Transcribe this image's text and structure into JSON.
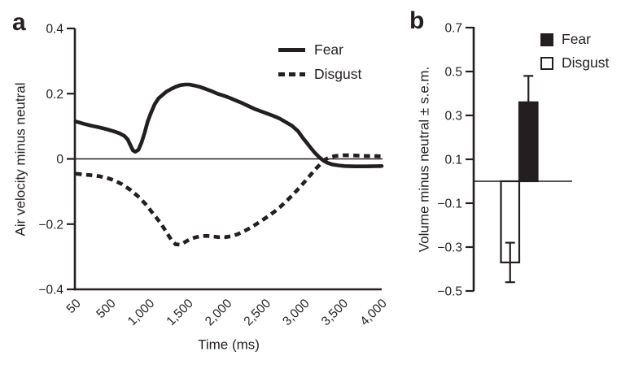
{
  "colors": {
    "ink": "#231f20",
    "background": "#ffffff"
  },
  "panel_a": {
    "letter": "a",
    "ylabel": "Air velocity minus neutral",
    "xlabel": "Time (ms)",
    "legend": [
      {
        "label": "Fear",
        "swatch": "solid-line"
      },
      {
        "label": "Disgust",
        "swatch": "dashed-line"
      }
    ]
  },
  "panel_b": {
    "letter": "b",
    "ylabel": "Volume minus neutral ± s.e.m.",
    "legend": [
      {
        "label": "Fear",
        "swatch": "filled-square"
      },
      {
        "label": "Disgust",
        "swatch": "outline-square"
      }
    ]
  },
  "chart_data": [
    {
      "panel": "a",
      "type": "line",
      "title": "",
      "xlabel": "Time (ms)",
      "ylabel": "Air velocity minus neutral",
      "xlim": [
        50,
        4000
      ],
      "ylim": [
        -0.4,
        0.4
      ],
      "xtick_values": [
        50,
        500,
        1000,
        1500,
        2000,
        2500,
        3000,
        3500,
        4000
      ],
      "xtick_labels": [
        "50",
        "500",
        "1,000",
        "1,500",
        "2,000",
        "2,500",
        "3,000",
        "3,500",
        "4,000"
      ],
      "ytick_values": [
        0.4,
        0.2,
        0,
        -0.2,
        -0.4
      ],
      "ytick_labels": [
        "0.4",
        "0.2",
        "0",
        "−0.2",
        "−0.4"
      ],
      "zero_line": true,
      "grid": false,
      "legend_position": "top-right",
      "series": [
        {
          "name": "Fear",
          "line": "solid",
          "points": [
            [
              50,
              0.115
            ],
            [
              150,
              0.108
            ],
            [
              250,
              0.102
            ],
            [
              350,
              0.097
            ],
            [
              450,
              0.091
            ],
            [
              550,
              0.084
            ],
            [
              620,
              0.078
            ],
            [
              680,
              0.07
            ],
            [
              720,
              0.06
            ],
            [
              760,
              0.04
            ],
            [
              790,
              0.026
            ],
            [
              820,
              0.022
            ],
            [
              860,
              0.028
            ],
            [
              900,
              0.05
            ],
            [
              940,
              0.08
            ],
            [
              980,
              0.115
            ],
            [
              1020,
              0.14
            ],
            [
              1070,
              0.168
            ],
            [
              1120,
              0.186
            ],
            [
              1170,
              0.196
            ],
            [
              1220,
              0.206
            ],
            [
              1280,
              0.214
            ],
            [
              1340,
              0.221
            ],
            [
              1400,
              0.226
            ],
            [
              1460,
              0.228
            ],
            [
              1520,
              0.228
            ],
            [
              1580,
              0.225
            ],
            [
              1650,
              0.221
            ],
            [
              1720,
              0.215
            ],
            [
              1800,
              0.208
            ],
            [
              1880,
              0.2
            ],
            [
              1960,
              0.194
            ],
            [
              2040,
              0.187
            ],
            [
              2120,
              0.179
            ],
            [
              2200,
              0.171
            ],
            [
              2280,
              0.162
            ],
            [
              2360,
              0.153
            ],
            [
              2440,
              0.146
            ],
            [
              2520,
              0.139
            ],
            [
              2600,
              0.132
            ],
            [
              2680,
              0.124
            ],
            [
              2760,
              0.113
            ],
            [
              2840,
              0.102
            ],
            [
              2920,
              0.085
            ],
            [
              2980,
              0.065
            ],
            [
              3040,
              0.047
            ],
            [
              3090,
              0.032
            ],
            [
              3140,
              0.018
            ],
            [
              3190,
              0.006
            ],
            [
              3240,
              -0.004
            ],
            [
              3290,
              -0.011
            ],
            [
              3360,
              -0.017
            ],
            [
              3440,
              -0.02
            ],
            [
              3520,
              -0.022
            ],
            [
              3650,
              -0.023
            ],
            [
              3800,
              -0.023
            ],
            [
              4000,
              -0.022
            ]
          ]
        },
        {
          "name": "Disgust",
          "line": "dashed",
          "points": [
            [
              50,
              -0.045
            ],
            [
              150,
              -0.048
            ],
            [
              250,
              -0.05
            ],
            [
              350,
              -0.053
            ],
            [
              450,
              -0.058
            ],
            [
              550,
              -0.066
            ],
            [
              650,
              -0.078
            ],
            [
              750,
              -0.094
            ],
            [
              850,
              -0.114
            ],
            [
              950,
              -0.138
            ],
            [
              1050,
              -0.168
            ],
            [
              1150,
              -0.198
            ],
            [
              1230,
              -0.228
            ],
            [
              1290,
              -0.25
            ],
            [
              1340,
              -0.262
            ],
            [
              1390,
              -0.263
            ],
            [
              1440,
              -0.258
            ],
            [
              1490,
              -0.251
            ],
            [
              1540,
              -0.245
            ],
            [
              1590,
              -0.241
            ],
            [
              1660,
              -0.237
            ],
            [
              1740,
              -0.236
            ],
            [
              1820,
              -0.238
            ],
            [
              1900,
              -0.24
            ],
            [
              1980,
              -0.24
            ],
            [
              2060,
              -0.237
            ],
            [
              2140,
              -0.231
            ],
            [
              2220,
              -0.222
            ],
            [
              2300,
              -0.212
            ],
            [
              2380,
              -0.2
            ],
            [
              2460,
              -0.188
            ],
            [
              2540,
              -0.175
            ],
            [
              2620,
              -0.161
            ],
            [
              2700,
              -0.145
            ],
            [
              2780,
              -0.127
            ],
            [
              2860,
              -0.108
            ],
            [
              2940,
              -0.088
            ],
            [
              3020,
              -0.066
            ],
            [
              3100,
              -0.044
            ],
            [
              3160,
              -0.028
            ],
            [
              3220,
              -0.013
            ],
            [
              3270,
              -0.002
            ],
            [
              3330,
              0.005
            ],
            [
              3400,
              0.009
            ],
            [
              3500,
              0.011
            ],
            [
              3600,
              0.011
            ],
            [
              3700,
              0.01
            ],
            [
              3800,
              0.009
            ],
            [
              3900,
              0.009
            ],
            [
              4000,
              0.008
            ]
          ]
        }
      ]
    },
    {
      "panel": "b",
      "type": "bar",
      "title": "",
      "xlabel": "",
      "ylabel": "Volume minus neutral ± s.e.m.",
      "ylim": [
        -0.5,
        0.7
      ],
      "ytick_values": [
        0.7,
        0.5,
        0.3,
        0.1,
        -0.1,
        -0.3,
        -0.5
      ],
      "ytick_labels": [
        "0.7",
        "0.5",
        "0.3",
        "0.1",
        "−0.1",
        "−0.3",
        "−0.5"
      ],
      "zero_line": true,
      "grid": false,
      "legend_position": "top-right",
      "bars": [
        {
          "name": "Disgust",
          "value": -0.37,
          "sem": 0.09,
          "fill": "outline"
        },
        {
          "name": "Fear",
          "value": 0.36,
          "sem": 0.12,
          "fill": "filled"
        }
      ]
    }
  ]
}
